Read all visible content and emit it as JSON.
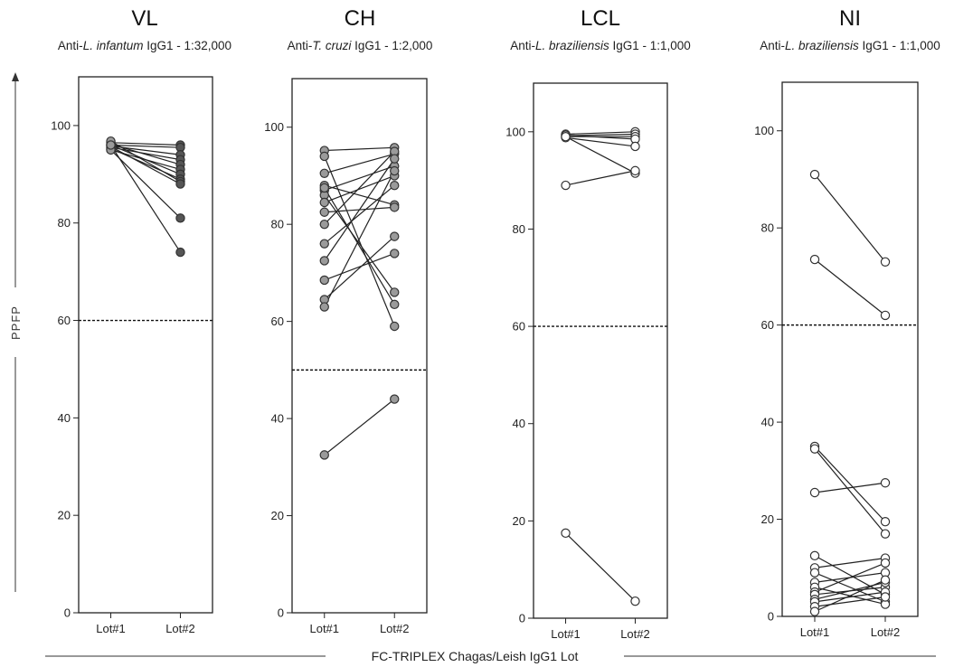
{
  "figure": {
    "y_axis_label": "PPFP",
    "x_axis_label": "FC-TRIPLEX Chagas/Leish IgG1 Lot"
  },
  "chart_data": [
    {
      "type": "line",
      "title": "VL",
      "subtitle_pre": "Anti-",
      "subtitle_species": "L. infantum",
      "subtitle_post": " IgG1 - 1:32,000",
      "categories": [
        "Lot#1",
        "Lot#2"
      ],
      "ylim": [
        0,
        110
      ],
      "yticks": [
        0,
        20,
        40,
        60,
        80,
        100
      ],
      "cutoff": 60,
      "marker_fill": "#9a9a9a",
      "marker_fill_lot2": "#555555",
      "pairs": [
        [
          96.5,
          96.0
        ],
        [
          96.0,
          95.5
        ],
        [
          95.8,
          94.0
        ],
        [
          95.5,
          93.0
        ],
        [
          96.2,
          92.0
        ],
        [
          95.0,
          91.0
        ],
        [
          96.0,
          90.0
        ],
        [
          95.3,
          89.0
        ],
        [
          96.8,
          88.5
        ],
        [
          95.7,
          88.0
        ],
        [
          95.0,
          81.0
        ],
        [
          96.0,
          74.0
        ]
      ]
    },
    {
      "type": "line",
      "title": "CH",
      "subtitle_pre": "Anti-",
      "subtitle_species": "T. cruzi",
      "subtitle_post": " IgG1 - 1:2,000",
      "categories": [
        "Lot#1",
        "Lot#2"
      ],
      "ylim": [
        0,
        110
      ],
      "yticks": [
        0,
        20,
        40,
        60,
        80,
        100
      ],
      "cutoff": 50,
      "marker_fill": "#9a9a9a",
      "marker_fill_lot2": "#9a9a9a",
      "pairs": [
        [
          95.2,
          95.8
        ],
        [
          94.0,
          59.0
        ],
        [
          90.5,
          94.5
        ],
        [
          88.0,
          84.0
        ],
        [
          87.0,
          92.0
        ],
        [
          86.0,
          66.0
        ],
        [
          84.5,
          90.0
        ],
        [
          82.5,
          83.5
        ],
        [
          80.0,
          95.0
        ],
        [
          76.0,
          88.0
        ],
        [
          72.5,
          93.5
        ],
        [
          68.5,
          74.0
        ],
        [
          64.5,
          77.5
        ],
        [
          63.0,
          91.0
        ],
        [
          87.5,
          63.5
        ],
        [
          32.5,
          44.0
        ]
      ]
    },
    {
      "type": "line",
      "title": "LCL",
      "subtitle_pre": "Anti-",
      "subtitle_species": "L. braziliensis",
      "subtitle_post": " IgG1 - 1:1,000",
      "categories": [
        "Lot#1",
        "Lot#2"
      ],
      "ylim": [
        0,
        110
      ],
      "yticks": [
        0,
        20,
        40,
        60,
        80,
        100
      ],
      "cutoff": 60,
      "marker_fill": "#ffffff",
      "marker_fill_lot2": "#ffffff",
      "pairs": [
        [
          99.5,
          100.0
        ],
        [
          99.2,
          99.5
        ],
        [
          99.0,
          99.0
        ],
        [
          99.3,
          98.5
        ],
        [
          98.8,
          97.0
        ],
        [
          99.0,
          91.5
        ],
        [
          89.0,
          92.0
        ],
        [
          17.5,
          3.5
        ]
      ]
    },
    {
      "type": "line",
      "title": "NI",
      "subtitle_pre": "Anti-",
      "subtitle_species": "L. braziliensis",
      "subtitle_post": " IgG1 - 1:1,000",
      "categories": [
        "Lot#1",
        "Lot#2"
      ],
      "ylim": [
        0,
        110
      ],
      "yticks": [
        0,
        20,
        40,
        60,
        80,
        100
      ],
      "cutoff": 60,
      "marker_fill": "#ffffff",
      "marker_fill_lot2": "#ffffff",
      "pairs": [
        [
          91.0,
          73.0
        ],
        [
          73.5,
          62.0
        ],
        [
          35.0,
          19.5
        ],
        [
          34.5,
          17.0
        ],
        [
          25.5,
          27.5
        ],
        [
          12.5,
          4.5
        ],
        [
          10.0,
          12.0
        ],
        [
          9.0,
          3.0
        ],
        [
          7.0,
          9.0
        ],
        [
          6.0,
          2.5
        ],
        [
          5.0,
          11.0
        ],
        [
          4.5,
          6.0
        ],
        [
          3.5,
          7.0
        ],
        [
          3.0,
          5.0
        ],
        [
          2.0,
          4.0
        ],
        [
          1.0,
          7.5
        ]
      ]
    }
  ]
}
